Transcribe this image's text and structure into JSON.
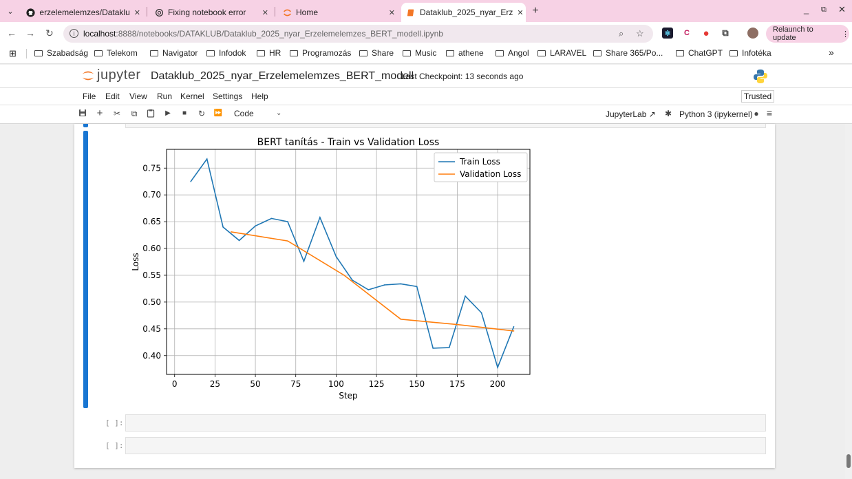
{
  "browser": {
    "tabs": [
      {
        "title": "erzelemelemzes/Dataklu",
        "icon": "github-icon"
      },
      {
        "title": "Fixing notebook error",
        "icon": "openai-icon"
      },
      {
        "title": "Home",
        "icon": "jupyter-icon"
      },
      {
        "title": "Dataklub_2025_nyar_Erz",
        "icon": "notebook-icon"
      }
    ],
    "active_tab": 3,
    "url_host": "localhost",
    "url_path": ":8888/notebooks/DATAKLUB/Dataklub_2025_nyar_Erzelemelemzes_BERT_modell.ipynb",
    "relaunch_label": "Relaunch to update",
    "bookmarks": [
      "Szabadság",
      "Telekom",
      "Navigator",
      "Infodok",
      "HR",
      "Programozás",
      "Share",
      "Music",
      "athene",
      "Angol",
      "LARAVEL",
      "Share 365/Po...",
      "ChatGPT",
      "Infotéka"
    ],
    "more_bookmarks": "»"
  },
  "jupyter": {
    "logo_text": "jupyter",
    "notebook_title": "Dataklub_2025_nyar_Erzelemelemzes_BERT_modell",
    "checkpoint": "Last Checkpoint: 13 seconds ago",
    "menu": [
      "File",
      "Edit",
      "View",
      "Run",
      "Kernel",
      "Settings",
      "Help"
    ],
    "trusted": "Trusted",
    "cell_type": "Code",
    "jupyterlab_label": "JupyterLab",
    "kernel_label": "Python 3 (ipykernel)",
    "empty_prompts": [
      "[ ]:",
      "[ ]:"
    ]
  },
  "chart_data": {
    "type": "line",
    "title": "BERT tanítás - Train vs Validation Loss",
    "xlabel": "Step",
    "ylabel": "Loss",
    "xlim": [
      -5,
      220
    ],
    "ylim": [
      0.365,
      0.785
    ],
    "xticks": [
      0,
      25,
      50,
      75,
      100,
      125,
      150,
      175,
      200
    ],
    "yticks": [
      0.4,
      0.45,
      0.5,
      0.55,
      0.6,
      0.65,
      0.7,
      0.75
    ],
    "grid": true,
    "legend_position": "top-right",
    "series": [
      {
        "name": "Train Loss",
        "color": "#1f77b4",
        "x": [
          10,
          20,
          30,
          40,
          50,
          60,
          70,
          80,
          90,
          100,
          110,
          120,
          130,
          140,
          150,
          160,
          170,
          180,
          190,
          200,
          210
        ],
        "y": [
          0.725,
          0.767,
          0.64,
          0.615,
          0.642,
          0.656,
          0.65,
          0.576,
          0.658,
          0.585,
          0.541,
          0.523,
          0.532,
          0.534,
          0.529,
          0.414,
          0.415,
          0.511,
          0.48,
          0.378,
          0.454
        ]
      },
      {
        "name": "Validation Loss",
        "color": "#ff7f0e",
        "x": [
          35,
          70,
          105,
          140,
          175,
          210
        ],
        "y": [
          0.631,
          0.614,
          0.55,
          0.468,
          0.458,
          0.446
        ]
      }
    ]
  }
}
